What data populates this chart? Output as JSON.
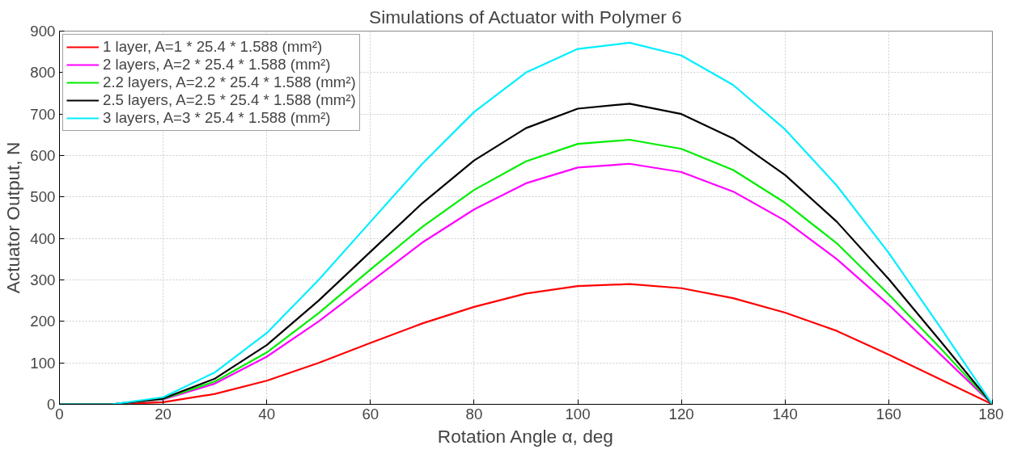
{
  "chart_data": {
    "type": "line",
    "title": "Simulations of Actuator with Polymer 6",
    "xlabel": "Rotation Angle α, deg",
    "ylabel": "Actuator Output, N",
    "x": [
      0,
      10,
      20,
      30,
      40,
      50,
      60,
      70,
      80,
      90,
      100,
      110,
      120,
      130,
      140,
      150,
      160,
      170,
      180
    ],
    "series": [
      {
        "name": "1 layer, A=1 * 25.4 * 1.588 (mm²)",
        "color": "#ff0000",
        "values": [
          0,
          0,
          5,
          25,
          57,
          100,
          148,
          195,
          235,
          267,
          285,
          290,
          280,
          256,
          221,
          177,
          120,
          60,
          0
        ]
      },
      {
        "name": "2 layers, A=2 * 25.4 * 1.588 (mm²)",
        "color": "#ff00ff",
        "values": [
          0,
          0,
          12,
          50,
          115,
          200,
          295,
          390,
          470,
          533,
          571,
          580,
          560,
          513,
          443,
          350,
          240,
          120,
          0
        ]
      },
      {
        "name": "2.2 layers, A=2.2 * 25.4 * 1.588 (mm²)",
        "color": "#00ee00",
        "values": [
          0,
          0,
          13,
          55,
          125,
          220,
          325,
          428,
          517,
          586,
          628,
          638,
          616,
          565,
          486,
          388,
          265,
          135,
          0
        ]
      },
      {
        "name": "2.5 layers, A=2.5 * 25.4 * 1.588 (mm²)",
        "color": "#000000",
        "values": [
          0,
          0,
          14,
          62,
          143,
          250,
          368,
          485,
          588,
          666,
          713,
          725,
          700,
          641,
          553,
          440,
          302,
          152,
          0
        ]
      },
      {
        "name": "3 layers, A=3 * 25.4 * 1.588 (mm²)",
        "color": "#00eeff",
        "values": [
          0,
          0,
          17,
          77,
          172,
          300,
          440,
          580,
          705,
          800,
          857,
          872,
          841,
          770,
          663,
          527,
          365,
          185,
          0
        ]
      }
    ],
    "xlim": [
      0,
      180
    ],
    "ylim": [
      0,
      900
    ],
    "xticks": [
      0,
      20,
      40,
      60,
      80,
      100,
      120,
      140,
      160,
      180
    ],
    "yticks": [
      0,
      100,
      200,
      300,
      400,
      500,
      600,
      700,
      800,
      900
    ],
    "grid": true,
    "legend": "top left",
    "marker": "none",
    "line_style": "solid"
  }
}
